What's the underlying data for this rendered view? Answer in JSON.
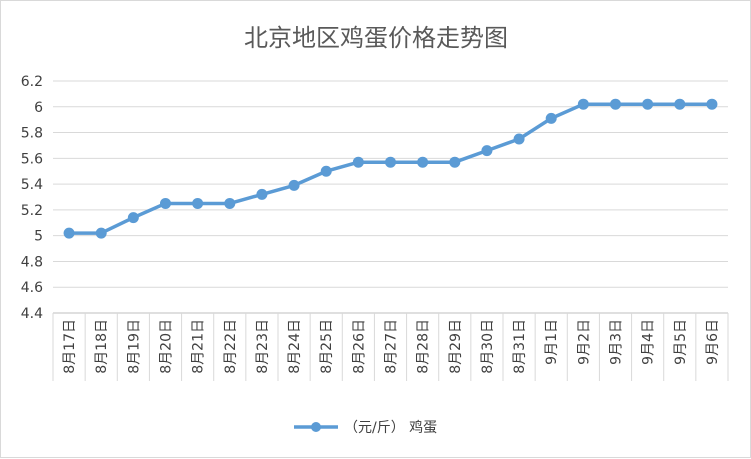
{
  "chart_data": {
    "type": "line",
    "title": "北京地区鸡蛋价格走势图",
    "xlabel": "",
    "ylabel": "",
    "ylim": [
      4.4,
      6.2
    ],
    "yticks": [
      "4.4",
      "4.6",
      "4.8",
      "5",
      "5.2",
      "5.4",
      "5.6",
      "5.8",
      "6",
      "6.2"
    ],
    "categories": [
      "8月17日",
      "8月18日",
      "8月19日",
      "8月20日",
      "8月21日",
      "8月22日",
      "8月23日",
      "8月24日",
      "8月25日",
      "8月26日",
      "8月27日",
      "8月28日",
      "8月29日",
      "8月30日",
      "8月31日",
      "9月1日",
      "9月2日",
      "9月3日",
      "9月4日",
      "9月5日",
      "9月6日"
    ],
    "series": [
      {
        "name": "（元/斤） 鸡蛋",
        "values": [
          5.02,
          5.02,
          5.14,
          5.25,
          5.25,
          5.25,
          5.32,
          5.39,
          5.5,
          5.57,
          5.57,
          5.57,
          5.57,
          5.66,
          5.75,
          5.91,
          6.02,
          6.02,
          6.02,
          6.02,
          6.02
        ]
      }
    ],
    "grid": true,
    "legend_position": "bottom",
    "colors": {
      "line": "#5b9bd5",
      "grid": "#d9d9d9",
      "text": "#404040",
      "title": "#595959"
    }
  }
}
